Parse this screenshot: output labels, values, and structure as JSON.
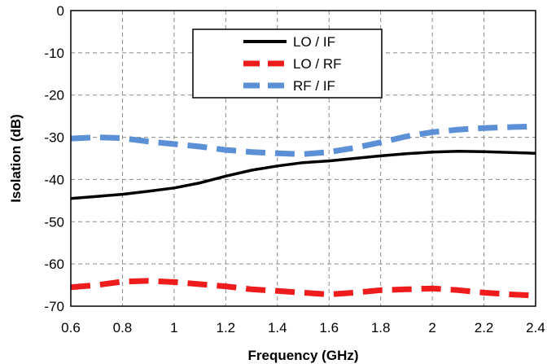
{
  "chart_data": {
    "type": "line",
    "title": "",
    "xlabel": "Frequency (GHz)",
    "ylabel": "Isolation (dB)",
    "xlim": [
      0.6,
      2.4
    ],
    "ylim": [
      -70,
      0
    ],
    "xticks": [
      0.6,
      0.8,
      1.0,
      1.2,
      1.4,
      1.6,
      1.8,
      2.0,
      2.2,
      2.4
    ],
    "xtick_labels": [
      "0.6",
      "0.8",
      "1",
      "1.2",
      "1.4",
      "1.6",
      "1.8",
      "2",
      "2.2",
      "2.4"
    ],
    "yticks": [
      0,
      -10,
      -20,
      -30,
      -40,
      -50,
      -60,
      -70
    ],
    "ytick_labels": [
      "0",
      "-10",
      "-20",
      "-30",
      "-40",
      "-50",
      "-60",
      "-70"
    ],
    "grid": true,
    "legend_position": "top-center",
    "series": [
      {
        "name": "LO / IF",
        "color": "#000000",
        "style": "solid",
        "x": [
          0.6,
          0.7,
          0.8,
          0.9,
          1.0,
          1.1,
          1.2,
          1.3,
          1.4,
          1.5,
          1.6,
          1.7,
          1.8,
          1.9,
          2.0,
          2.1,
          2.2,
          2.3,
          2.4
        ],
        "y": [
          -44.5,
          -44.0,
          -43.5,
          -42.8,
          -42.0,
          -40.8,
          -39.2,
          -37.8,
          -36.8,
          -36.0,
          -35.6,
          -35.0,
          -34.4,
          -33.9,
          -33.5,
          -33.3,
          -33.4,
          -33.6,
          -33.8
        ]
      },
      {
        "name": "LO / RF",
        "color": "#ee1c1c",
        "style": "dashed",
        "x": [
          0.6,
          0.7,
          0.8,
          0.9,
          1.0,
          1.1,
          1.2,
          1.3,
          1.4,
          1.5,
          1.6,
          1.7,
          1.8,
          1.9,
          2.0,
          2.1,
          2.2,
          2.3,
          2.4
        ],
        "y": [
          -65.5,
          -65.0,
          -64.2,
          -64.0,
          -64.3,
          -64.8,
          -65.3,
          -66.0,
          -66.4,
          -66.8,
          -67.2,
          -66.8,
          -66.2,
          -66.0,
          -65.8,
          -66.2,
          -66.8,
          -67.2,
          -67.5
        ]
      },
      {
        "name": "RF / IF",
        "color": "#5b8fd6",
        "style": "dashed",
        "x": [
          0.6,
          0.7,
          0.8,
          0.9,
          1.0,
          1.1,
          1.2,
          1.3,
          1.4,
          1.5,
          1.6,
          1.7,
          1.8,
          1.9,
          2.0,
          2.1,
          2.2,
          2.3,
          2.4
        ],
        "y": [
          -30.3,
          -30.0,
          -30.2,
          -31.0,
          -31.6,
          -32.2,
          -33.0,
          -33.5,
          -33.8,
          -34.0,
          -33.5,
          -32.5,
          -31.2,
          -29.8,
          -28.8,
          -28.2,
          -27.8,
          -27.6,
          -27.4
        ]
      }
    ]
  }
}
